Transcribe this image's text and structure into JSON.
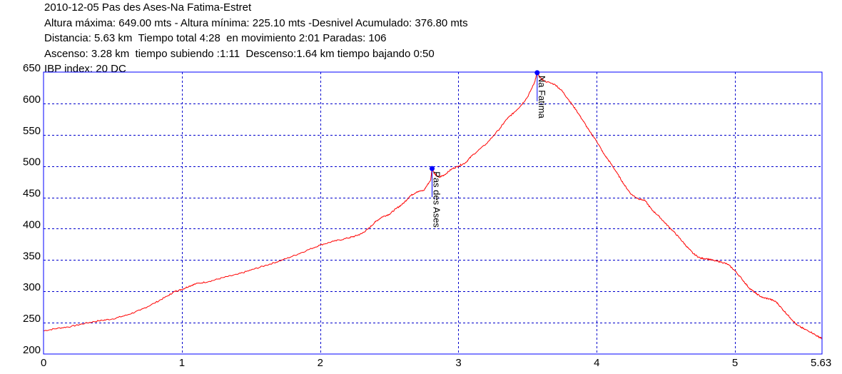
{
  "header": {
    "lines": [
      "2010-12-05 Pas des Ases-Na Fatima-Estret",
      "Altura máxima: 649.00 mts - Altura mínima: 225.10 mts -Desnivel Acumulado: 376.80 mts",
      "Distancia: 5.63 km  Tiempo total 4:28  en movimiento 2:01 Paradas: 106",
      "Ascenso: 3.28 km  tiempo subiendo :1:11  Descenso:1.64 km tiempo bajando 0:50",
      "IBP index: 20 DC"
    ]
  },
  "colors": {
    "background": "#ffffff",
    "plot_frame": "#0000ff",
    "grid": "#0000cc",
    "profile_line": "#ff0000",
    "marker": "#0000ff",
    "text": "#000000"
  },
  "chart_data": {
    "type": "line",
    "xlim": [
      0,
      5.63
    ],
    "ylim": [
      200,
      650
    ],
    "x_ticks": [
      0,
      1,
      2,
      3,
      4,
      5,
      5.63
    ],
    "x_tick_labels": [
      "0",
      "1",
      "2",
      "3",
      "4",
      "5",
      "5.63"
    ],
    "y_ticks": [
      200,
      250,
      300,
      350,
      400,
      450,
      500,
      550,
      600,
      650
    ],
    "y_tick_labels": [
      "200",
      "250",
      "300",
      "350",
      "400",
      "450",
      "500",
      "550",
      "600",
      "650"
    ],
    "grid": true,
    "grid_style": "dashed",
    "series": [
      {
        "points": [
          [
            0,
            237
          ],
          [
            0.1,
            241
          ],
          [
            0.2,
            244
          ],
          [
            0.3,
            249
          ],
          [
            0.4,
            253
          ],
          [
            0.5,
            256
          ],
          [
            0.6,
            262
          ],
          [
            0.7,
            270
          ],
          [
            0.8,
            281
          ],
          [
            0.9,
            293
          ],
          [
            0.95,
            300
          ],
          [
            1.0,
            303
          ],
          [
            1.05,
            308
          ],
          [
            1.1,
            312
          ],
          [
            1.2,
            316
          ],
          [
            1.3,
            322
          ],
          [
            1.4,
            327
          ],
          [
            1.5,
            334
          ],
          [
            1.6,
            341
          ],
          [
            1.7,
            348
          ],
          [
            1.8,
            356
          ],
          [
            1.9,
            365
          ],
          [
            2.0,
            374
          ],
          [
            2.1,
            380
          ],
          [
            2.2,
            385
          ],
          [
            2.25,
            388
          ],
          [
            2.3,
            392
          ],
          [
            2.35,
            400
          ],
          [
            2.4,
            411
          ],
          [
            2.45,
            419
          ],
          [
            2.5,
            423
          ],
          [
            2.55,
            432
          ],
          [
            2.6,
            440
          ],
          [
            2.65,
            452
          ],
          [
            2.7,
            459
          ],
          [
            2.75,
            461
          ],
          [
            2.8,
            478
          ],
          [
            2.81,
            496
          ],
          [
            2.83,
            487
          ],
          [
            2.86,
            482
          ],
          [
            2.9,
            486
          ],
          [
            2.95,
            495
          ],
          [
            3.0,
            500
          ],
          [
            3.05,
            505
          ],
          [
            3.1,
            517
          ],
          [
            3.2,
            535
          ],
          [
            3.3,
            560
          ],
          [
            3.35,
            575
          ],
          [
            3.4,
            585
          ],
          [
            3.45,
            596
          ],
          [
            3.5,
            610
          ],
          [
            3.55,
            633
          ],
          [
            3.57,
            649
          ],
          [
            3.59,
            641
          ],
          [
            3.62,
            636
          ],
          [
            3.7,
            630
          ],
          [
            3.75,
            620
          ],
          [
            3.8,
            605
          ],
          [
            3.85,
            590
          ],
          [
            3.9,
            573
          ],
          [
            3.95,
            555
          ],
          [
            4.0,
            540
          ],
          [
            4.05,
            520
          ],
          [
            4.1,
            505
          ],
          [
            4.15,
            488
          ],
          [
            4.2,
            470
          ],
          [
            4.25,
            455
          ],
          [
            4.3,
            448
          ],
          [
            4.35,
            445
          ],
          [
            4.4,
            430
          ],
          [
            4.45,
            420
          ],
          [
            4.5,
            408
          ],
          [
            4.55,
            397
          ],
          [
            4.6,
            385
          ],
          [
            4.65,
            372
          ],
          [
            4.7,
            360
          ],
          [
            4.75,
            353
          ],
          [
            4.8,
            352
          ],
          [
            4.85,
            349
          ],
          [
            4.9,
            347
          ],
          [
            4.95,
            343
          ],
          [
            5.0,
            333
          ],
          [
            5.05,
            320
          ],
          [
            5.1,
            306
          ],
          [
            5.15,
            297
          ],
          [
            5.2,
            290
          ],
          [
            5.25,
            288
          ],
          [
            5.3,
            283
          ],
          [
            5.35,
            270
          ],
          [
            5.4,
            258
          ],
          [
            5.45,
            246
          ],
          [
            5.5,
            240
          ],
          [
            5.55,
            235
          ],
          [
            5.6,
            228
          ],
          [
            5.63,
            225
          ]
        ]
      }
    ],
    "annotations": [
      {
        "label": "Pas des Ases",
        "x": 2.81,
        "y": 496
      },
      {
        "label": "Na Fatima",
        "x": 3.57,
        "y": 649
      }
    ]
  }
}
